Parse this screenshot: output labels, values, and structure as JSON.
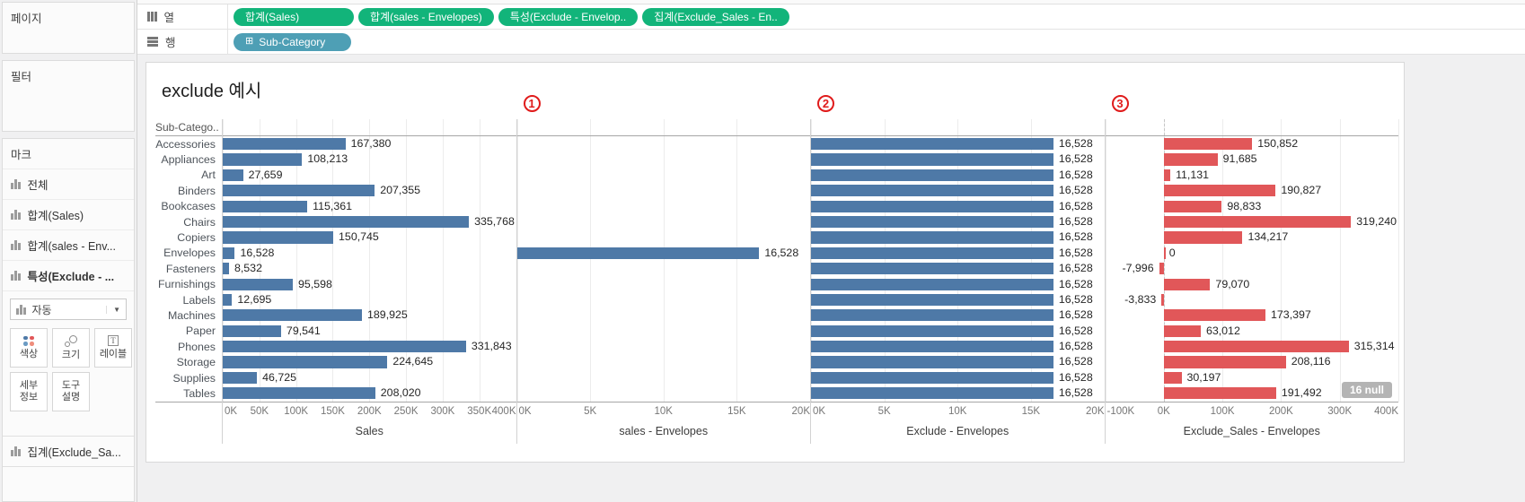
{
  "shelves": {
    "columns": {
      "label": "열",
      "pills": [
        "합계(Sales)",
        "합계(sales - Envelopes)",
        "특성(Exclude - Envelop..",
        "집계(Exclude_Sales - En.."
      ]
    },
    "rows": {
      "label": "행",
      "pills": [
        "Sub-Category"
      ]
    }
  },
  "sidebar": {
    "pages_title": "페이지",
    "filters_title": "필터",
    "marks": {
      "title": "마크",
      "items": [
        {
          "label": "전체",
          "selected": false
        },
        {
          "label": "합계(Sales)",
          "selected": false
        },
        {
          "label": "합계(sales - Env...",
          "selected": false
        },
        {
          "label": "특성(Exclude - ...",
          "selected": true
        }
      ],
      "mark_type": "자동",
      "buttons": [
        {
          "name": "color",
          "label": "색상"
        },
        {
          "name": "size",
          "label": "크기"
        },
        {
          "name": "label",
          "label": "레이블"
        },
        {
          "name": "detail",
          "label": "세부\n정보"
        },
        {
          "name": "tooltip",
          "label": "도구\n설명"
        }
      ],
      "bottom_item": "집계(Exclude_Sa..."
    }
  },
  "chart": {
    "title": "exclude 예시",
    "row_header": "Sub-Catego..",
    "annotations": [
      "1",
      "2",
      "3"
    ],
    "null_badge": "16 null"
  },
  "chart_data": {
    "type": "bar",
    "orientation": "horizontal",
    "categories": [
      "Accessories",
      "Appliances",
      "Art",
      "Binders",
      "Bookcases",
      "Chairs",
      "Copiers",
      "Envelopes",
      "Fasteners",
      "Furnishings",
      "Labels",
      "Machines",
      "Paper",
      "Phones",
      "Storage",
      "Supplies",
      "Tables"
    ],
    "panels": [
      {
        "name": "Sales",
        "color": "#4e79a7",
        "xlim": [
          0,
          400000
        ],
        "tick_labels": [
          "0K",
          "50K",
          "100K",
          "150K",
          "200K",
          "250K",
          "300K",
          "350K",
          "400K"
        ],
        "tick_values": [
          0,
          50000,
          100000,
          150000,
          200000,
          250000,
          300000,
          350000,
          400000
        ],
        "values": [
          167380,
          108213,
          27659,
          207355,
          115361,
          335768,
          150745,
          16528,
          8532,
          95598,
          12695,
          189925,
          79541,
          331843,
          224645,
          46725,
          208020
        ]
      },
      {
        "name": "sales - Envelopes",
        "color": "#4e79a7",
        "xlim": [
          0,
          20000
        ],
        "tick_labels": [
          "0K",
          "5K",
          "10K",
          "15K",
          "20K"
        ],
        "tick_values": [
          0,
          5000,
          10000,
          15000,
          20000
        ],
        "values": [
          null,
          null,
          null,
          null,
          null,
          null,
          null,
          16528,
          null,
          null,
          null,
          null,
          null,
          null,
          null,
          null,
          null
        ]
      },
      {
        "name": "Exclude - Envelopes",
        "color": "#4e79a7",
        "xlim": [
          0,
          20000
        ],
        "tick_labels": [
          "0K",
          "5K",
          "10K",
          "15K",
          "20K"
        ],
        "tick_values": [
          0,
          5000,
          10000,
          15000,
          20000
        ],
        "values": [
          16528,
          16528,
          16528,
          16528,
          16528,
          16528,
          16528,
          16528,
          16528,
          16528,
          16528,
          16528,
          16528,
          16528,
          16528,
          16528,
          16528
        ]
      },
      {
        "name": "Exclude_Sales - Envelopes",
        "color": "#e15759",
        "xlim": [
          -100000,
          400000
        ],
        "tick_labels": [
          "-100K",
          "0K",
          "100K",
          "200K",
          "300K",
          "400K"
        ],
        "tick_values": [
          -100000,
          0,
          100000,
          200000,
          300000,
          400000
        ],
        "values": [
          150852,
          91685,
          11131,
          190827,
          98833,
          319240,
          134217,
          0,
          -7996,
          79070,
          -3833,
          173397,
          63012,
          315314,
          208116,
          30197,
          191492
        ],
        "zero_line": true
      }
    ]
  },
  "colors": {
    "bar_blue": "#4e79a7",
    "bar_red": "#e15759",
    "pill_green": "#12b47a",
    "pill_teal": "#4e9fb5",
    "annotation_red": "#e01b1b",
    "color_icon_dots": [
      "#4e79a7",
      "#e15759",
      "#6b9bc3",
      "#ef8e7d"
    ]
  }
}
